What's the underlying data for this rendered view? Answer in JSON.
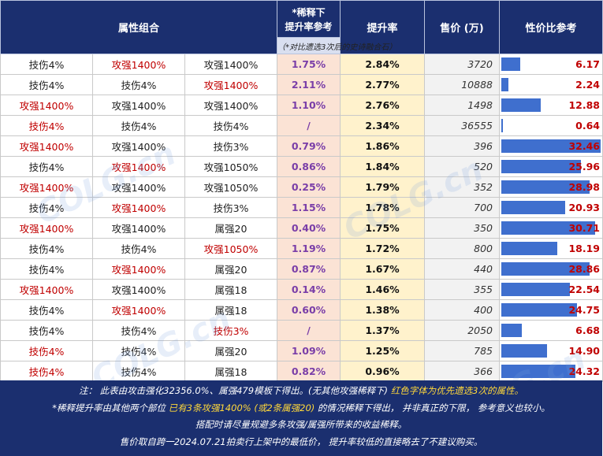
{
  "header": {
    "attr_group": "属性组合",
    "dilution_top1": "*稀释下",
    "dilution_top2": "提升率参考",
    "dilution_note": "（*对比遗选3次后的史诗融合石）",
    "rate": "提升率",
    "price": "售价 (万)",
    "cp": "性价比参考"
  },
  "rows": [
    {
      "a": "技伤4%",
      "b": "攻强1400%",
      "c": "攻强1400%",
      "ar": false,
      "br": true,
      "cr": false,
      "dil": "1.75%",
      "rate": "2.84%",
      "price": "3720",
      "cp": "6.17",
      "cpv": 6.17
    },
    {
      "a": "技伤4%",
      "b": "技伤4%",
      "c": "攻强1400%",
      "ar": false,
      "br": false,
      "cr": true,
      "dil": "2.11%",
      "rate": "2.77%",
      "price": "10888",
      "cp": "2.24",
      "cpv": 2.24
    },
    {
      "a": "攻强1400%",
      "b": "攻强1400%",
      "c": "攻强1400%",
      "ar": true,
      "br": false,
      "cr": false,
      "dil": "1.10%",
      "rate": "2.76%",
      "price": "1498",
      "cp": "12.88",
      "cpv": 12.88
    },
    {
      "a": "技伤4%",
      "b": "技伤4%",
      "c": "技伤4%",
      "ar": true,
      "br": false,
      "cr": false,
      "dil": "/",
      "rate": "2.34%",
      "price": "36555",
      "cp": "0.64",
      "cpv": 0.64
    },
    {
      "a": "攻强1400%",
      "b": "攻强1400%",
      "c": "技伤3%",
      "ar": true,
      "br": false,
      "cr": false,
      "dil": "0.79%",
      "rate": "1.86%",
      "price": "396",
      "cp": "32.46",
      "cpv": 32.46
    },
    {
      "a": "技伤4%",
      "b": "攻强1400%",
      "c": "攻强1050%",
      "ar": false,
      "br": true,
      "cr": false,
      "dil": "0.86%",
      "rate": "1.84%",
      "price": "520",
      "cp": "25.96",
      "cpv": 25.96
    },
    {
      "a": "攻强1400%",
      "b": "攻强1400%",
      "c": "攻强1050%",
      "ar": true,
      "br": false,
      "cr": false,
      "dil": "0.25%",
      "rate": "1.79%",
      "price": "352",
      "cp": "28.98",
      "cpv": 28.98
    },
    {
      "a": "技伤4%",
      "b": "攻强1400%",
      "c": "技伤3%",
      "ar": false,
      "br": true,
      "cr": false,
      "dil": "1.15%",
      "rate": "1.78%",
      "price": "700",
      "cp": "20.93",
      "cpv": 20.93
    },
    {
      "a": "攻强1400%",
      "b": "攻强1400%",
      "c": "属强20",
      "ar": true,
      "br": false,
      "cr": false,
      "dil": "0.40%",
      "rate": "1.75%",
      "price": "350",
      "cp": "30.71",
      "cpv": 30.71
    },
    {
      "a": "技伤4%",
      "b": "技伤4%",
      "c": "攻强1050%",
      "ar": false,
      "br": false,
      "cr": true,
      "dil": "1.19%",
      "rate": "1.72%",
      "price": "800",
      "cp": "18.19",
      "cpv": 18.19
    },
    {
      "a": "技伤4%",
      "b": "攻强1400%",
      "c": "属强20",
      "ar": false,
      "br": true,
      "cr": false,
      "dil": "0.87%",
      "rate": "1.67%",
      "price": "440",
      "cp": "28.86",
      "cpv": 28.86
    },
    {
      "a": "攻强1400%",
      "b": "攻强1400%",
      "c": "属强18",
      "ar": true,
      "br": false,
      "cr": false,
      "dil": "0.14%",
      "rate": "1.46%",
      "price": "355",
      "cp": "22.54",
      "cpv": 22.54
    },
    {
      "a": "技伤4%",
      "b": "攻强1400%",
      "c": "属强18",
      "ar": false,
      "br": true,
      "cr": false,
      "dil": "0.60%",
      "rate": "1.38%",
      "price": "400",
      "cp": "24.75",
      "cpv": 24.75
    },
    {
      "a": "技伤4%",
      "b": "技伤4%",
      "c": "技伤3%",
      "ar": false,
      "br": false,
      "cr": true,
      "dil": "/",
      "rate": "1.37%",
      "price": "2050",
      "cp": "6.68",
      "cpv": 6.68
    },
    {
      "a": "技伤4%",
      "b": "技伤4%",
      "c": "属强20",
      "ar": true,
      "br": false,
      "cr": false,
      "dil": "1.09%",
      "rate": "1.25%",
      "price": "785",
      "cp": "14.90",
      "cpv": 14.9
    },
    {
      "a": "技伤4%",
      "b": "技伤4%",
      "c": "属强18",
      "ar": true,
      "br": false,
      "cr": false,
      "dil": "0.82%",
      "rate": "0.96%",
      "price": "366",
      "cp": "24.32",
      "cpv": 24.32
    }
  ],
  "cp_max": 32.46,
  "footer": {
    "l1a": "注： 此表由攻击强化32356.0%、属强479模板下得出。(无其他攻强稀释下) ",
    "l1b": "红色字体为优先遗选3次的属性。",
    "l2a": "*稀释提升率由其他两个部位 ",
    "l2b": "已有3条攻强1400% (或2条属强20)",
    "l2c": " 的情况稀释下得出， 并非真正的下限， 参考意义也较小。",
    "l3": "搭配时请尽量规避多条攻强/属强所带来的收益稀释。",
    "l4": "售价取自跨一2024.07.21拍卖行上架中的最低价， 提升率较低的直接略去了不建议购买。"
  },
  "watermark": "COLG.cn"
}
